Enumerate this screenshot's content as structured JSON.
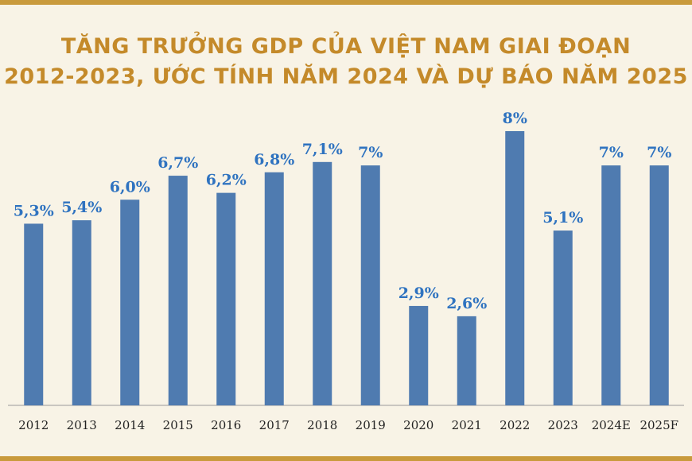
{
  "chart_data": {
    "type": "bar",
    "title_line1": "TĂNG TRƯỞNG GDP CỦA VIỆT NAM GIAI ĐOẠN",
    "title_line2": "2012-2023, ƯỚC TÍNH NĂM 2024 VÀ DỰ BÁO NĂM 2025",
    "categories": [
      "2012",
      "2013",
      "2014",
      "2015",
      "2016",
      "2017",
      "2018",
      "2019",
      "2020",
      "2021",
      "2022",
      "2023",
      "2024E",
      "2025F"
    ],
    "values": [
      5.3,
      5.4,
      6.0,
      6.7,
      6.2,
      6.8,
      7.1,
      7.0,
      2.9,
      2.6,
      8.0,
      5.1,
      7.0,
      7.0
    ],
    "labels": [
      "5,3%",
      "5,4%",
      "6,0%",
      "6,7%",
      "6,2%",
      "6,8%",
      "7,1%",
      "7%",
      "2,9%",
      "2,6%",
      "8%",
      "5,1%",
      "7%",
      "7%"
    ],
    "unit": "%",
    "ylim": [
      0,
      8
    ],
    "colors": {
      "bar": "#4f7bb0",
      "value_label": "#2f73c0",
      "title": "#c48a2a",
      "background": "#f8f3e6"
    },
    "grid": false,
    "legend": "none"
  }
}
